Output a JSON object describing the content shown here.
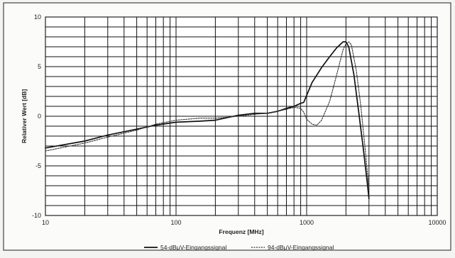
{
  "chart_data": {
    "type": "line",
    "xlabel": "Frequenz [MHz]",
    "ylabel": "Relativer Wert [dB]",
    "x_scale": "log",
    "xlim": [
      10,
      10000
    ],
    "ylim": [
      -10,
      10
    ],
    "x_ticks": [
      10,
      100,
      1000,
      10000
    ],
    "x_tick_labels": [
      "10",
      "100",
      "1000",
      "10000"
    ],
    "y_ticks": [
      -10,
      -5,
      0,
      5,
      10
    ],
    "y_tick_labels": [
      "-10",
      "-5",
      "0",
      "5",
      "10"
    ],
    "grid": true,
    "legend_position": "bottom-center",
    "series": [
      {
        "name": "54-dBμV-Eingangssignal",
        "style": "solid",
        "color": "#111111",
        "x": [
          10,
          20,
          30,
          50,
          70,
          100,
          150,
          200,
          300,
          400,
          500,
          600,
          700,
          800,
          900,
          950,
          1000,
          1100,
          1300,
          1500,
          1700,
          1900,
          2000,
          2100,
          2300,
          2500,
          2700,
          2900,
          3000
        ],
        "y": [
          -3.2,
          -2.5,
          -1.9,
          -1.3,
          -0.9,
          -0.6,
          -0.5,
          -0.4,
          0.1,
          0.3,
          0.3,
          0.5,
          0.8,
          1.0,
          1.3,
          1.4,
          2.1,
          3.4,
          4.9,
          6.0,
          6.9,
          7.5,
          7.5,
          7.0,
          4.2,
          0.5,
          -3.0,
          -6.5,
          -8.3
        ]
      },
      {
        "name": "94-dBμV-Eingangssignal",
        "style": "dotted",
        "color": "#333333",
        "x": [
          10,
          20,
          30,
          50,
          70,
          100,
          150,
          200,
          300,
          400,
          500,
          600,
          700,
          800,
          900,
          950,
          1000,
          1100,
          1200,
          1300,
          1500,
          1700,
          1900,
          2000,
          2100,
          2200,
          2400,
          2600,
          2800,
          3000
        ],
        "y": [
          -3.5,
          -2.7,
          -2.1,
          -1.4,
          -0.8,
          -0.4,
          -0.2,
          -0.2,
          0.0,
          0.2,
          0.3,
          0.5,
          0.7,
          0.9,
          0.8,
          0.4,
          -0.3,
          -0.8,
          -0.9,
          -0.4,
          1.5,
          4.2,
          6.7,
          7.3,
          7.5,
          7.2,
          4.6,
          1.0,
          -3.2,
          -7.4
        ]
      }
    ]
  }
}
